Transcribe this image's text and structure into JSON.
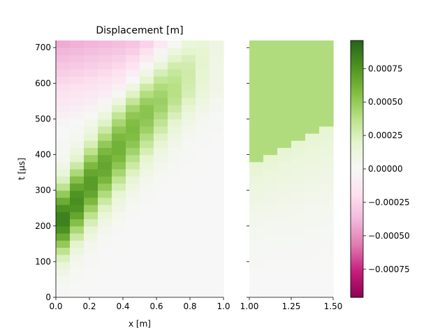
{
  "figure": {
    "title": "Displacement [m]"
  },
  "chart_data": [
    {
      "type": "heatmap",
      "panel": "left",
      "title": "Displacement [m]",
      "xlabel": "x [m]",
      "ylabel": "t [µs]",
      "xlim": [
        0.0,
        1.0
      ],
      "ylim": [
        0,
        720
      ],
      "x_ticks": [
        0.0,
        0.2,
        0.4,
        0.6,
        0.8,
        1.0
      ],
      "x_tick_labels": [
        "0.0",
        "0.2",
        "0.4",
        "0.6",
        "0.8",
        "1.0"
      ],
      "y_ticks": [
        0,
        100,
        200,
        300,
        400,
        500,
        600,
        700
      ],
      "y_tick_labels": [
        "0",
        "100",
        "200",
        "300",
        "400",
        "500",
        "600",
        "700"
      ],
      "x_cells": 12,
      "t_cells": 36,
      "cell_dt": 20,
      "pulse_peak_displacement": 0.00088,
      "pulse_peak_time": 195,
      "pulse_speed_m_per_us": 0.00167,
      "late_time_displacement": -0.00044,
      "colormap": "PiYG"
    },
    {
      "type": "heatmap",
      "panel": "right",
      "xlabel": "",
      "ylabel": "",
      "xlim": [
        1.0,
        1.5
      ],
      "ylim": [
        0,
        720
      ],
      "x_ticks": [
        1.0,
        1.25,
        1.5
      ],
      "x_tick_labels": [
        "1.00",
        "1.25",
        "1.50"
      ],
      "x_cells": 6,
      "t_cells": 36,
      "upper_region_displacement": 0.00041,
      "colormap": "PiYG"
    }
  ],
  "colorbar": {
    "vmin": -0.00096,
    "vmax": 0.00096,
    "ticks": [
      -0.00075,
      -0.0005,
      -0.00025,
      0.0,
      0.00025,
      0.0005,
      0.00075
    ],
    "tick_labels": [
      "−0.00075",
      "−0.00050",
      "−0.00025",
      "0.00000",
      "0.00025",
      "0.00050",
      "0.00075"
    ]
  },
  "colors": {
    "neg_max": "#8e0152",
    "neg_mid": "#de77ae",
    "neutral": "#f7f7f7",
    "pos_mid": "#7fbc41",
    "pos_max": "#276419"
  }
}
